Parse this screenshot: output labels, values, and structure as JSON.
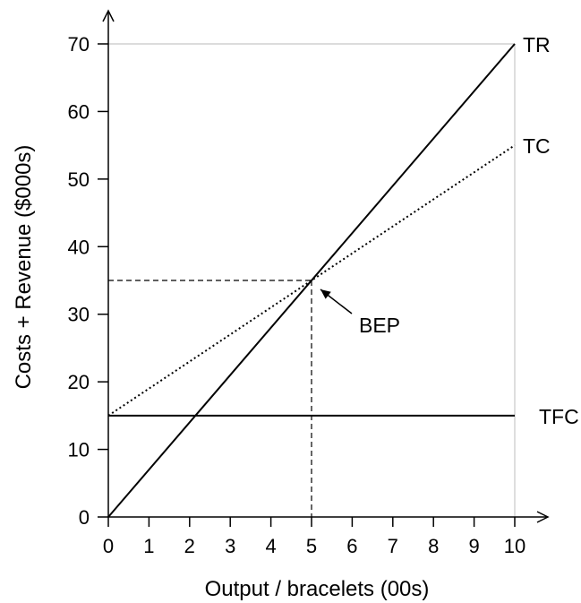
{
  "chart_data": {
    "type": "line",
    "title": "",
    "xlabel": "Output / bracelets (00s)",
    "ylabel": "Costs + Revenue ($000s)",
    "xlim": [
      0,
      10
    ],
    "ylim": [
      0,
      70
    ],
    "x_ticks": [
      "0",
      "1",
      "2",
      "3",
      "4",
      "5",
      "6",
      "7",
      "8",
      "9",
      "10"
    ],
    "y_ticks": [
      "0",
      "10",
      "20",
      "30",
      "40",
      "50",
      "60",
      "70"
    ],
    "series": [
      {
        "name": "TR",
        "x": [
          0,
          10
        ],
        "y": [
          0,
          70
        ],
        "style": "solid"
      },
      {
        "name": "TC",
        "x": [
          0,
          10
        ],
        "y": [
          15,
          55
        ],
        "style": "dotted"
      },
      {
        "name": "TFC",
        "x": [
          0,
          10
        ],
        "y": [
          15,
          15
        ],
        "style": "solid"
      }
    ],
    "annotations": [
      {
        "label": "BEP",
        "x": 5,
        "y": 35,
        "guides": "dashed"
      }
    ],
    "grid": false,
    "legend": "labels at line ends"
  }
}
